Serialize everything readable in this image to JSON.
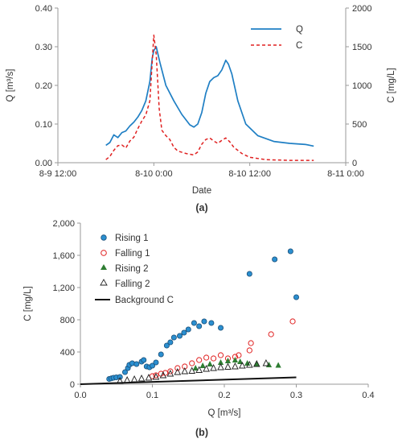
{
  "panels": {
    "a_label": "(a)",
    "b_label": "(b)"
  },
  "colors": {
    "blue": "#1f7fc4",
    "red": "#e02020",
    "green": "#2e7d32",
    "black": "#111111",
    "axis": "#9a9a9a"
  },
  "chart_data": [
    {
      "type": "line",
      "xlabel": "Date",
      "ylabel": "Q [m³/s]",
      "y2label": "C [mg/L]",
      "x_ticks": [
        "8-9 12:00",
        "8-10 0:00",
        "8-10 12:00",
        "8-11 0:00"
      ],
      "x_range": [
        "8-9 12:00",
        "8-11 0:00"
      ],
      "ylim": [
        0,
        0.4
      ],
      "y_ticks": [
        "0.00",
        "0.10",
        "0.20",
        "0.30",
        "0.40"
      ],
      "y2lim": [
        0,
        2000
      ],
      "y2_ticks": [
        "0",
        "500",
        "1000",
        "1500",
        "2000"
      ],
      "legend_position": "top-right",
      "series": [
        {
          "name": "Q",
          "axis": "left",
          "style": "solid",
          "color": "#1f7fc4",
          "points": [
            [
              "8-9 18:00",
              0.045
            ],
            [
              "8-9 18:30",
              0.052
            ],
            [
              "8-9 19:00",
              0.072
            ],
            [
              "8-9 19:30",
              0.065
            ],
            [
              "8-9 20:00",
              0.078
            ],
            [
              "8-9 20:30",
              0.082
            ],
            [
              "8-9 21:00",
              0.095
            ],
            [
              "8-9 21:30",
              0.105
            ],
            [
              "8-9 22:00",
              0.118
            ],
            [
              "8-9 22:30",
              0.135
            ],
            [
              "8-9 23:00",
              0.16
            ],
            [
              "8-9 23:30",
              0.21
            ],
            [
              "8-9 23:48",
              0.27
            ],
            [
              "8-10 0:00",
              0.29
            ],
            [
              "8-10 0:18",
              0.3
            ],
            [
              "8-10 0:45",
              0.26
            ],
            [
              "8-10 1:30",
              0.2
            ],
            [
              "8-10 2:30",
              0.16
            ],
            [
              "8-10 3:30",
              0.125
            ],
            [
              "8-10 4:30",
              0.098
            ],
            [
              "8-10 5:00",
              0.092
            ],
            [
              "8-10 5:30",
              0.1
            ],
            [
              "8-10 6:00",
              0.13
            ],
            [
              "8-10 6:30",
              0.18
            ],
            [
              "8-10 7:00",
              0.21
            ],
            [
              "8-10 7:30",
              0.22
            ],
            [
              "8-10 8:00",
              0.225
            ],
            [
              "8-10 8:30",
              0.24
            ],
            [
              "8-10 9:00",
              0.265
            ],
            [
              "8-10 9:20",
              0.255
            ],
            [
              "8-10 9:45",
              0.23
            ],
            [
              "8-10 10:30",
              0.16
            ],
            [
              "8-10 11:30",
              0.1
            ],
            [
              "8-10 13:00",
              0.07
            ],
            [
              "8-10 15:00",
              0.055
            ],
            [
              "8-10 17:00",
              0.05
            ],
            [
              "8-10 19:00",
              0.047
            ],
            [
              "8-10 20:00",
              0.043
            ]
          ]
        },
        {
          "name": "C",
          "axis": "right",
          "style": "dashed",
          "color": "#e02020",
          "points": [
            [
              "8-9 18:00",
              40
            ],
            [
              "8-9 18:30",
              80
            ],
            [
              "8-9 19:00",
              160
            ],
            [
              "8-9 19:30",
              220
            ],
            [
              "8-9 20:00",
              230
            ],
            [
              "8-9 20:30",
              190
            ],
            [
              "8-9 21:00",
              280
            ],
            [
              "8-9 21:30",
              330
            ],
            [
              "8-9 22:00",
              440
            ],
            [
              "8-9 22:30",
              540
            ],
            [
              "8-9 23:00",
              620
            ],
            [
              "8-9 23:30",
              800
            ],
            [
              "8-9 23:48",
              1300
            ],
            [
              "8-10 0:00",
              1650
            ],
            [
              "8-10 0:18",
              1400
            ],
            [
              "8-10 0:40",
              700
            ],
            [
              "8-10 1:00",
              420
            ],
            [
              "8-10 1:30",
              350
            ],
            [
              "8-10 2:00",
              300
            ],
            [
              "8-10 2:30",
              200
            ],
            [
              "8-10 3:00",
              150
            ],
            [
              "8-10 4:00",
              120
            ],
            [
              "8-10 5:00",
              100
            ],
            [
              "8-10 5:30",
              140
            ],
            [
              "8-10 6:00",
              240
            ],
            [
              "8-10 6:30",
              300
            ],
            [
              "8-10 7:00",
              320
            ],
            [
              "8-10 7:30",
              280
            ],
            [
              "8-10 8:00",
              250
            ],
            [
              "8-10 8:30",
              290
            ],
            [
              "8-10 9:00",
              320
            ],
            [
              "8-10 9:30",
              270
            ],
            [
              "8-10 10:00",
              200
            ],
            [
              "8-10 11:00",
              120
            ],
            [
              "8-10 12:00",
              70
            ],
            [
              "8-10 14:00",
              40
            ],
            [
              "8-10 17:00",
              30
            ],
            [
              "8-10 20:00",
              30
            ]
          ]
        }
      ]
    },
    {
      "type": "scatter",
      "xlabel": "Q [m³/s]",
      "ylabel": "C [mg/L]",
      "xlim": [
        0,
        0.4
      ],
      "ylim": [
        0,
        2000
      ],
      "x_ticks": [
        "0.0",
        "0.1",
        "0.2",
        "0.3",
        "0.4"
      ],
      "y_ticks": [
        "0",
        "400",
        "800",
        "1,200",
        "1,600",
        "2,000"
      ],
      "legend_position": "top-left",
      "series": [
        {
          "name": "Rising 1",
          "marker": "filled-circle",
          "color": "#2b8fd0",
          "points": [
            [
              0.04,
              65
            ],
            [
              0.043,
              72
            ],
            [
              0.046,
              80
            ],
            [
              0.05,
              85
            ],
            [
              0.055,
              90
            ],
            [
              0.062,
              150
            ],
            [
              0.066,
              200
            ],
            [
              0.068,
              240
            ],
            [
              0.072,
              260
            ],
            [
              0.078,
              250
            ],
            [
              0.085,
              280
            ],
            [
              0.088,
              300
            ],
            [
              0.092,
              220
            ],
            [
              0.096,
              210
            ],
            [
              0.1,
              230
            ],
            [
              0.105,
              270
            ],
            [
              0.112,
              370
            ],
            [
              0.12,
              480
            ],
            [
              0.125,
              520
            ],
            [
              0.13,
              580
            ],
            [
              0.138,
              600
            ],
            [
              0.144,
              640
            ],
            [
              0.15,
              680
            ],
            [
              0.158,
              760
            ],
            [
              0.165,
              720
            ],
            [
              0.172,
              780
            ],
            [
              0.182,
              760
            ],
            [
              0.195,
              700
            ],
            [
              0.235,
              1370
            ],
            [
              0.27,
              1550
            ],
            [
              0.292,
              1650
            ],
            [
              0.3,
              1080
            ]
          ]
        },
        {
          "name": "Falling 1",
          "marker": "open-circle",
          "color": "#e02020",
          "points": [
            [
              0.1,
              100
            ],
            [
              0.105,
              110
            ],
            [
              0.112,
              130
            ],
            [
              0.118,
              140
            ],
            [
              0.125,
              160
            ],
            [
              0.135,
              200
            ],
            [
              0.145,
              220
            ],
            [
              0.155,
              260
            ],
            [
              0.165,
              300
            ],
            [
              0.175,
              330
            ],
            [
              0.185,
              320
            ],
            [
              0.195,
              360
            ],
            [
              0.205,
              320
            ],
            [
              0.215,
              340
            ],
            [
              0.22,
              360
            ],
            [
              0.235,
              420
            ],
            [
              0.237,
              510
            ],
            [
              0.265,
              620
            ],
            [
              0.295,
              780
            ]
          ]
        },
        {
          "name": "Rising 2",
          "marker": "filled-triangle",
          "color": "#2e7d32",
          "points": [
            [
              0.16,
              200
            ],
            [
              0.17,
              230
            ],
            [
              0.18,
              250
            ],
            [
              0.195,
              270
            ],
            [
              0.205,
              290
            ],
            [
              0.215,
              300
            ],
            [
              0.222,
              280
            ],
            [
              0.232,
              260
            ],
            [
              0.245,
              250
            ],
            [
              0.262,
              240
            ],
            [
              0.275,
              235
            ]
          ]
        },
        {
          "name": "Falling 2",
          "marker": "open-triangle",
          "color": "#222222",
          "points": [
            [
              0.055,
              40
            ],
            [
              0.065,
              50
            ],
            [
              0.075,
              60
            ],
            [
              0.085,
              70
            ],
            [
              0.095,
              80
            ],
            [
              0.105,
              90
            ],
            [
              0.115,
              110
            ],
            [
              0.125,
              130
            ],
            [
              0.135,
              150
            ],
            [
              0.145,
              160
            ],
            [
              0.155,
              165
            ],
            [
              0.165,
              175
            ],
            [
              0.175,
              190
            ],
            [
              0.185,
              200
            ],
            [
              0.195,
              210
            ],
            [
              0.205,
              215
            ],
            [
              0.215,
              220
            ],
            [
              0.225,
              230
            ],
            [
              0.235,
              240
            ],
            [
              0.245,
              250
            ],
            [
              0.258,
              260
            ]
          ]
        },
        {
          "name": "Background C",
          "marker": "line",
          "color": "#111111",
          "points": [
            [
              0.0,
              0
            ],
            [
              0.3,
              85
            ]
          ]
        }
      ]
    }
  ]
}
